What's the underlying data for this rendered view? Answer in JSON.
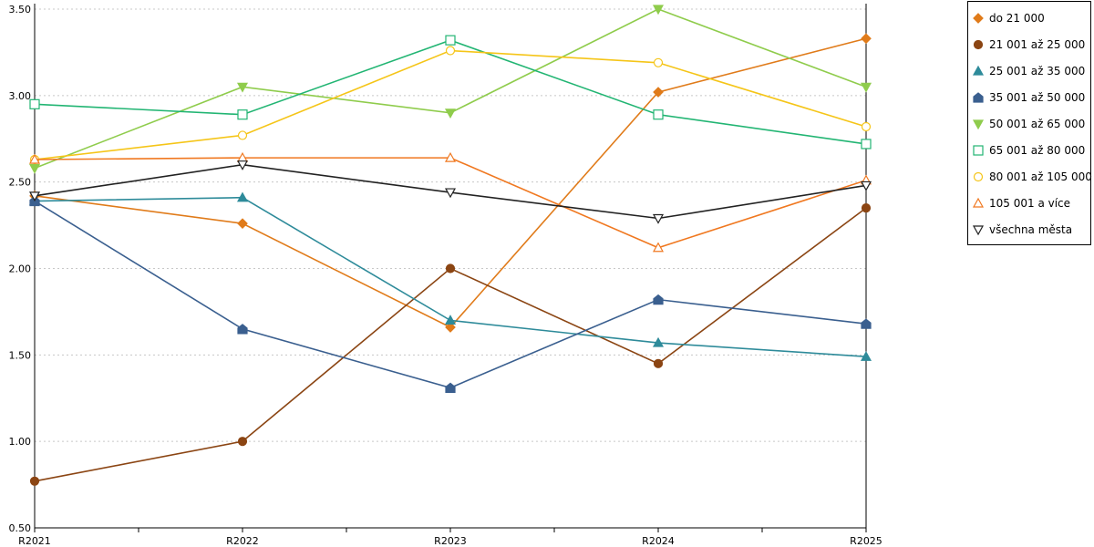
{
  "chart_data": {
    "type": "line",
    "x": [
      "R2021",
      "R2022",
      "R2023",
      "R2024",
      "R2025"
    ],
    "ylim": [
      0.5,
      3.5
    ],
    "yticks": [
      "0.50",
      "1.00",
      "1.50",
      "2.00",
      "2.50",
      "3.00",
      "3.50"
    ],
    "grid": true,
    "legend_position": "right",
    "series": [
      {
        "name": "do 21 000",
        "values": [
          2.42,
          2.26,
          1.66,
          3.02,
          3.33
        ],
        "color": "#e07b1a",
        "marker": "diamond-filled"
      },
      {
        "name": "21 001 až 25 000",
        "values": [
          0.77,
          1.0,
          2.0,
          1.45,
          2.35
        ],
        "color": "#8b4513",
        "marker": "circle-filled"
      },
      {
        "name": "25 001 až 35 000",
        "values": [
          2.39,
          2.41,
          1.7,
          1.57,
          1.49
        ],
        "color": "#2e8b9a",
        "marker": "triangle-up-filled"
      },
      {
        "name": "35 001 až 50 000",
        "values": [
          2.39,
          1.65,
          1.31,
          1.82,
          1.68
        ],
        "color": "#3a5f8f",
        "marker": "pentagon-filled"
      },
      {
        "name": "50 001 až 65 000",
        "values": [
          2.58,
          3.05,
          2.9,
          3.5,
          3.05
        ],
        "color": "#8fcc4c",
        "marker": "triangle-down-filled"
      },
      {
        "name": "65 001 až 80 000",
        "values": [
          2.95,
          2.89,
          3.32,
          2.89,
          2.72
        ],
        "color": "#22b573",
        "marker": "square-open"
      },
      {
        "name": "80 001 až 105 000",
        "values": [
          2.63,
          2.77,
          3.26,
          3.19,
          2.82
        ],
        "color": "#f5c518",
        "marker": "circle-open"
      },
      {
        "name": "105 001 a více",
        "values": [
          2.63,
          2.64,
          2.64,
          2.12,
          2.51
        ],
        "color": "#f07820",
        "marker": "triangle-up-open"
      },
      {
        "name": "všechna města",
        "values": [
          2.42,
          2.6,
          2.44,
          2.29,
          2.48
        ],
        "color": "#222222",
        "marker": "triangle-down-open"
      }
    ]
  }
}
